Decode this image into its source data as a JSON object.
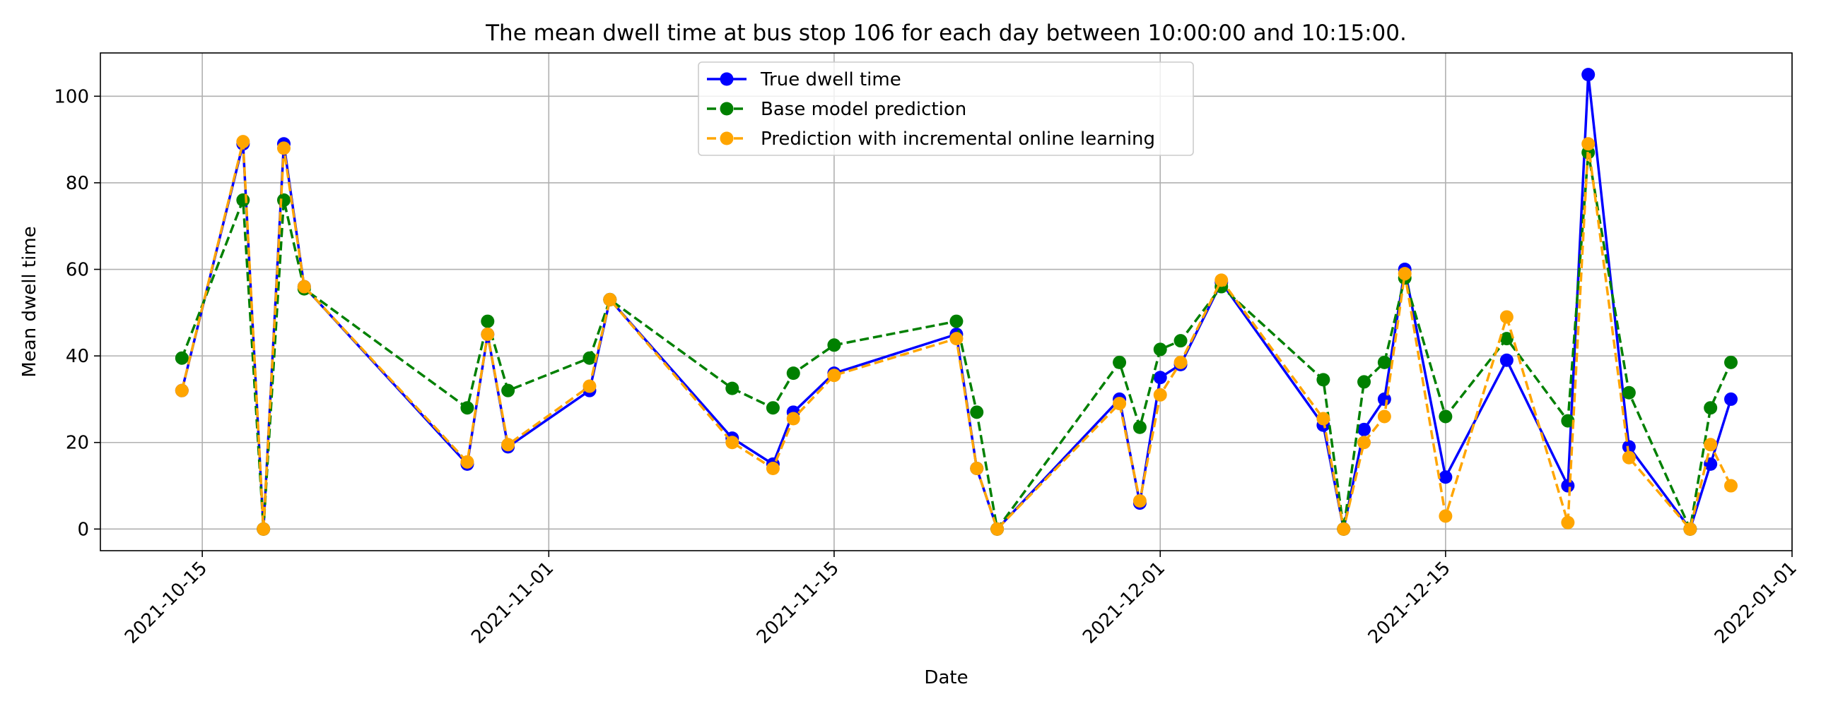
{
  "chart_data": {
    "type": "line",
    "title": "The mean dwell time at bus stop 106 for each day between 10:00:00 and 10:15:00.",
    "xlabel": "Date",
    "ylabel": "Mean dwell time",
    "xlim": [
      "2021-10-10",
      "2022-01-01"
    ],
    "ylim": [
      -5,
      110
    ],
    "x_ticks": [
      "2021-10-15",
      "2021-11-01",
      "2021-11-15",
      "2021-12-01",
      "2021-12-15",
      "2022-01-01"
    ],
    "y_ticks": [
      0,
      20,
      40,
      60,
      80,
      100
    ],
    "grid": true,
    "legend_position": "upper-center",
    "x": [
      "2021-10-14",
      "2021-10-17",
      "2021-10-18",
      "2021-10-19",
      "2021-10-20",
      "2021-10-28",
      "2021-10-29",
      "2021-10-30",
      "2021-11-03",
      "2021-11-04",
      "2021-11-10",
      "2021-11-12",
      "2021-11-13",
      "2021-11-15",
      "2021-11-21",
      "2021-11-22",
      "2021-11-23",
      "2021-11-29",
      "2021-11-30",
      "2021-12-01",
      "2021-12-02",
      "2021-12-04",
      "2021-12-09",
      "2021-12-10",
      "2021-12-11",
      "2021-12-12",
      "2021-12-13",
      "2021-12-15",
      "2021-12-18",
      "2021-12-21",
      "2021-12-22",
      "2021-12-24",
      "2021-12-27",
      "2021-12-28",
      "2021-12-29"
    ],
    "series": [
      {
        "name": "True dwell time",
        "color": "#0000ff",
        "style": "solid",
        "values": [
          32,
          89,
          0,
          89,
          56,
          15,
          45,
          19,
          32,
          53,
          21,
          15,
          27,
          36,
          45,
          14,
          0,
          30,
          6,
          35,
          38,
          57,
          24,
          0,
          23,
          30,
          60,
          12,
          39,
          10,
          105,
          19,
          0,
          15,
          30
        ]
      },
      {
        "name": "Base model prediction",
        "color": "#008000",
        "style": "dashed",
        "values": [
          39.5,
          76,
          0,
          76,
          55.5,
          28,
          48,
          32,
          39.5,
          53,
          32.5,
          28,
          36,
          42.5,
          48,
          27,
          0,
          38.5,
          23.5,
          41.5,
          43.5,
          56,
          34.5,
          0,
          34,
          38.5,
          58,
          26,
          44,
          25,
          87,
          31.5,
          0,
          28,
          38.5
        ]
      },
      {
        "name": "Prediction with incremental online learning",
        "color": "#ffa500",
        "style": "dashed",
        "values": [
          32,
          89.5,
          0,
          88,
          56,
          15.5,
          45,
          19.5,
          33,
          53,
          20,
          14,
          25.5,
          35.5,
          44,
          14,
          0,
          29,
          6.5,
          31,
          38.5,
          57.5,
          25.5,
          0,
          20,
          26,
          59,
          3,
          49,
          1.5,
          89,
          16.5,
          0,
          19.5,
          10
        ]
      }
    ]
  }
}
